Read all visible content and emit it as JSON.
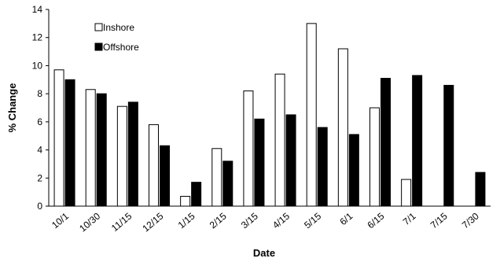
{
  "chart_data": {
    "type": "bar",
    "categories": [
      "10/1",
      "10/30",
      "11/15",
      "12/15",
      "1/15",
      "2/15",
      "3/15",
      "4/15",
      "5/15",
      "6/1",
      "6/15",
      "7/1",
      "7/15",
      "7/30"
    ],
    "series": [
      {
        "name": "Inshore",
        "color": "#ffffff",
        "values": [
          9.7,
          8.3,
          7.1,
          5.8,
          0.7,
          4.1,
          8.2,
          9.4,
          13.0,
          11.2,
          7.0,
          1.9,
          null,
          null
        ]
      },
      {
        "name": "Offshore",
        "color": "#000000",
        "values": [
          9.0,
          8.0,
          7.4,
          4.3,
          1.7,
          3.2,
          6.2,
          6.5,
          5.6,
          5.1,
          9.1,
          9.3,
          8.6,
          2.4
        ]
      }
    ],
    "xlabel": "Date",
    "ylabel": "% Change",
    "ylim": [
      0,
      14
    ],
    "yticks": [
      "0",
      "2",
      "4",
      "6",
      "8",
      "10",
      "12",
      "14"
    ],
    "grid": false,
    "legend_position": "top-left"
  }
}
